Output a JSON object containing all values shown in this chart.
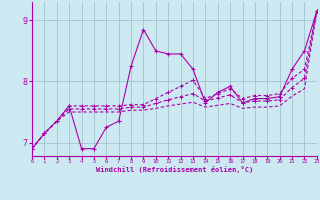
{
  "background_color": "#cce8f0",
  "grid_color": "#99bbcc",
  "line_color": "#aa00aa",
  "xlabel": "Windchill (Refroidissement éolien,°C)",
  "xlim": [
    0,
    23
  ],
  "ylim": [
    6.78,
    9.3
  ],
  "yticks": [
    7,
    8,
    9
  ],
  "xticks": [
    0,
    1,
    2,
    3,
    4,
    5,
    6,
    7,
    8,
    9,
    10,
    11,
    12,
    13,
    14,
    15,
    16,
    17,
    18,
    19,
    20,
    21,
    22,
    23
  ],
  "line1_x": [
    0,
    1,
    2,
    3,
    4,
    5,
    6,
    7,
    8,
    9,
    10,
    11,
    12,
    13,
    14,
    15,
    16,
    17,
    18,
    19,
    20,
    21,
    22,
    23
  ],
  "line1_y": [
    6.9,
    7.15,
    7.35,
    7.6,
    6.9,
    6.9,
    7.25,
    7.35,
    8.25,
    8.85,
    8.5,
    8.45,
    8.45,
    8.2,
    7.65,
    7.82,
    7.92,
    7.65,
    7.72,
    7.72,
    7.75,
    8.2,
    8.5,
    9.15
  ],
  "line2_x": [
    0,
    1,
    2,
    3,
    4,
    5,
    6,
    7,
    8,
    9,
    10,
    11,
    12,
    13,
    14,
    15,
    16,
    17,
    18,
    19,
    20,
    21,
    22,
    23
  ],
  "line2_y": [
    6.9,
    7.15,
    7.35,
    7.6,
    7.6,
    7.6,
    7.6,
    7.6,
    7.62,
    7.62,
    7.72,
    7.82,
    7.92,
    8.02,
    7.72,
    7.8,
    7.88,
    7.72,
    7.77,
    7.77,
    7.8,
    8.05,
    8.2,
    9.15
  ],
  "line3_x": [
    0,
    1,
    2,
    3,
    4,
    5,
    6,
    7,
    8,
    9,
    10,
    11,
    12,
    13,
    14,
    15,
    16,
    17,
    18,
    19,
    20,
    21,
    22,
    23
  ],
  "line3_y": [
    6.9,
    7.15,
    7.35,
    7.55,
    7.55,
    7.55,
    7.55,
    7.55,
    7.58,
    7.58,
    7.64,
    7.7,
    7.75,
    7.8,
    7.68,
    7.73,
    7.78,
    7.65,
    7.68,
    7.68,
    7.7,
    7.9,
    8.05,
    9.15
  ],
  "line4_x": [
    0,
    1,
    2,
    3,
    4,
    5,
    6,
    7,
    8,
    9,
    10,
    11,
    12,
    13,
    14,
    15,
    16,
    17,
    18,
    19,
    20,
    21,
    22,
    23
  ],
  "line4_y": [
    6.9,
    7.15,
    7.35,
    7.5,
    7.5,
    7.5,
    7.5,
    7.5,
    7.53,
    7.53,
    7.56,
    7.6,
    7.63,
    7.66,
    7.58,
    7.61,
    7.64,
    7.56,
    7.58,
    7.58,
    7.6,
    7.76,
    7.88,
    9.15
  ]
}
